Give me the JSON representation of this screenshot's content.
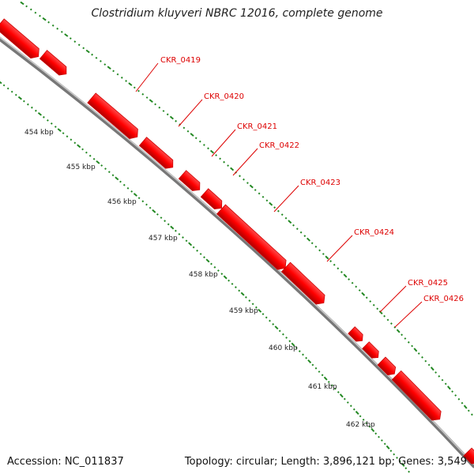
{
  "title": "Clostridium kluyveri NBRC 12016, complete genome",
  "footer": {
    "accession": "Accession: NC_011837",
    "summary": "Topology: circular; Length: 3,896,121 bp; Genes: 3,549"
  },
  "colors": {
    "gene_fill": "#ff0000",
    "gene_edge": "#cc0000",
    "backbone": "#9a9a9a",
    "scale_dots": "#228822",
    "label_text": "#dd0000",
    "label_leader": "#dd0000"
  },
  "scale_ticks": [
    "454 kbp",
    "455 kbp",
    "456 kbp",
    "457 kbp",
    "458 kbp",
    "459 kbp",
    "460 kbp",
    "461 kbp",
    "462 kbp"
  ],
  "gene_labels": [
    "CKR_0419",
    "CKR_0420",
    "CKR_0421",
    "CKR_0422",
    "CKR_0423",
    "CKR_0424",
    "CKR_0425",
    "CKR_0426"
  ],
  "gene_count_visible": 14
}
